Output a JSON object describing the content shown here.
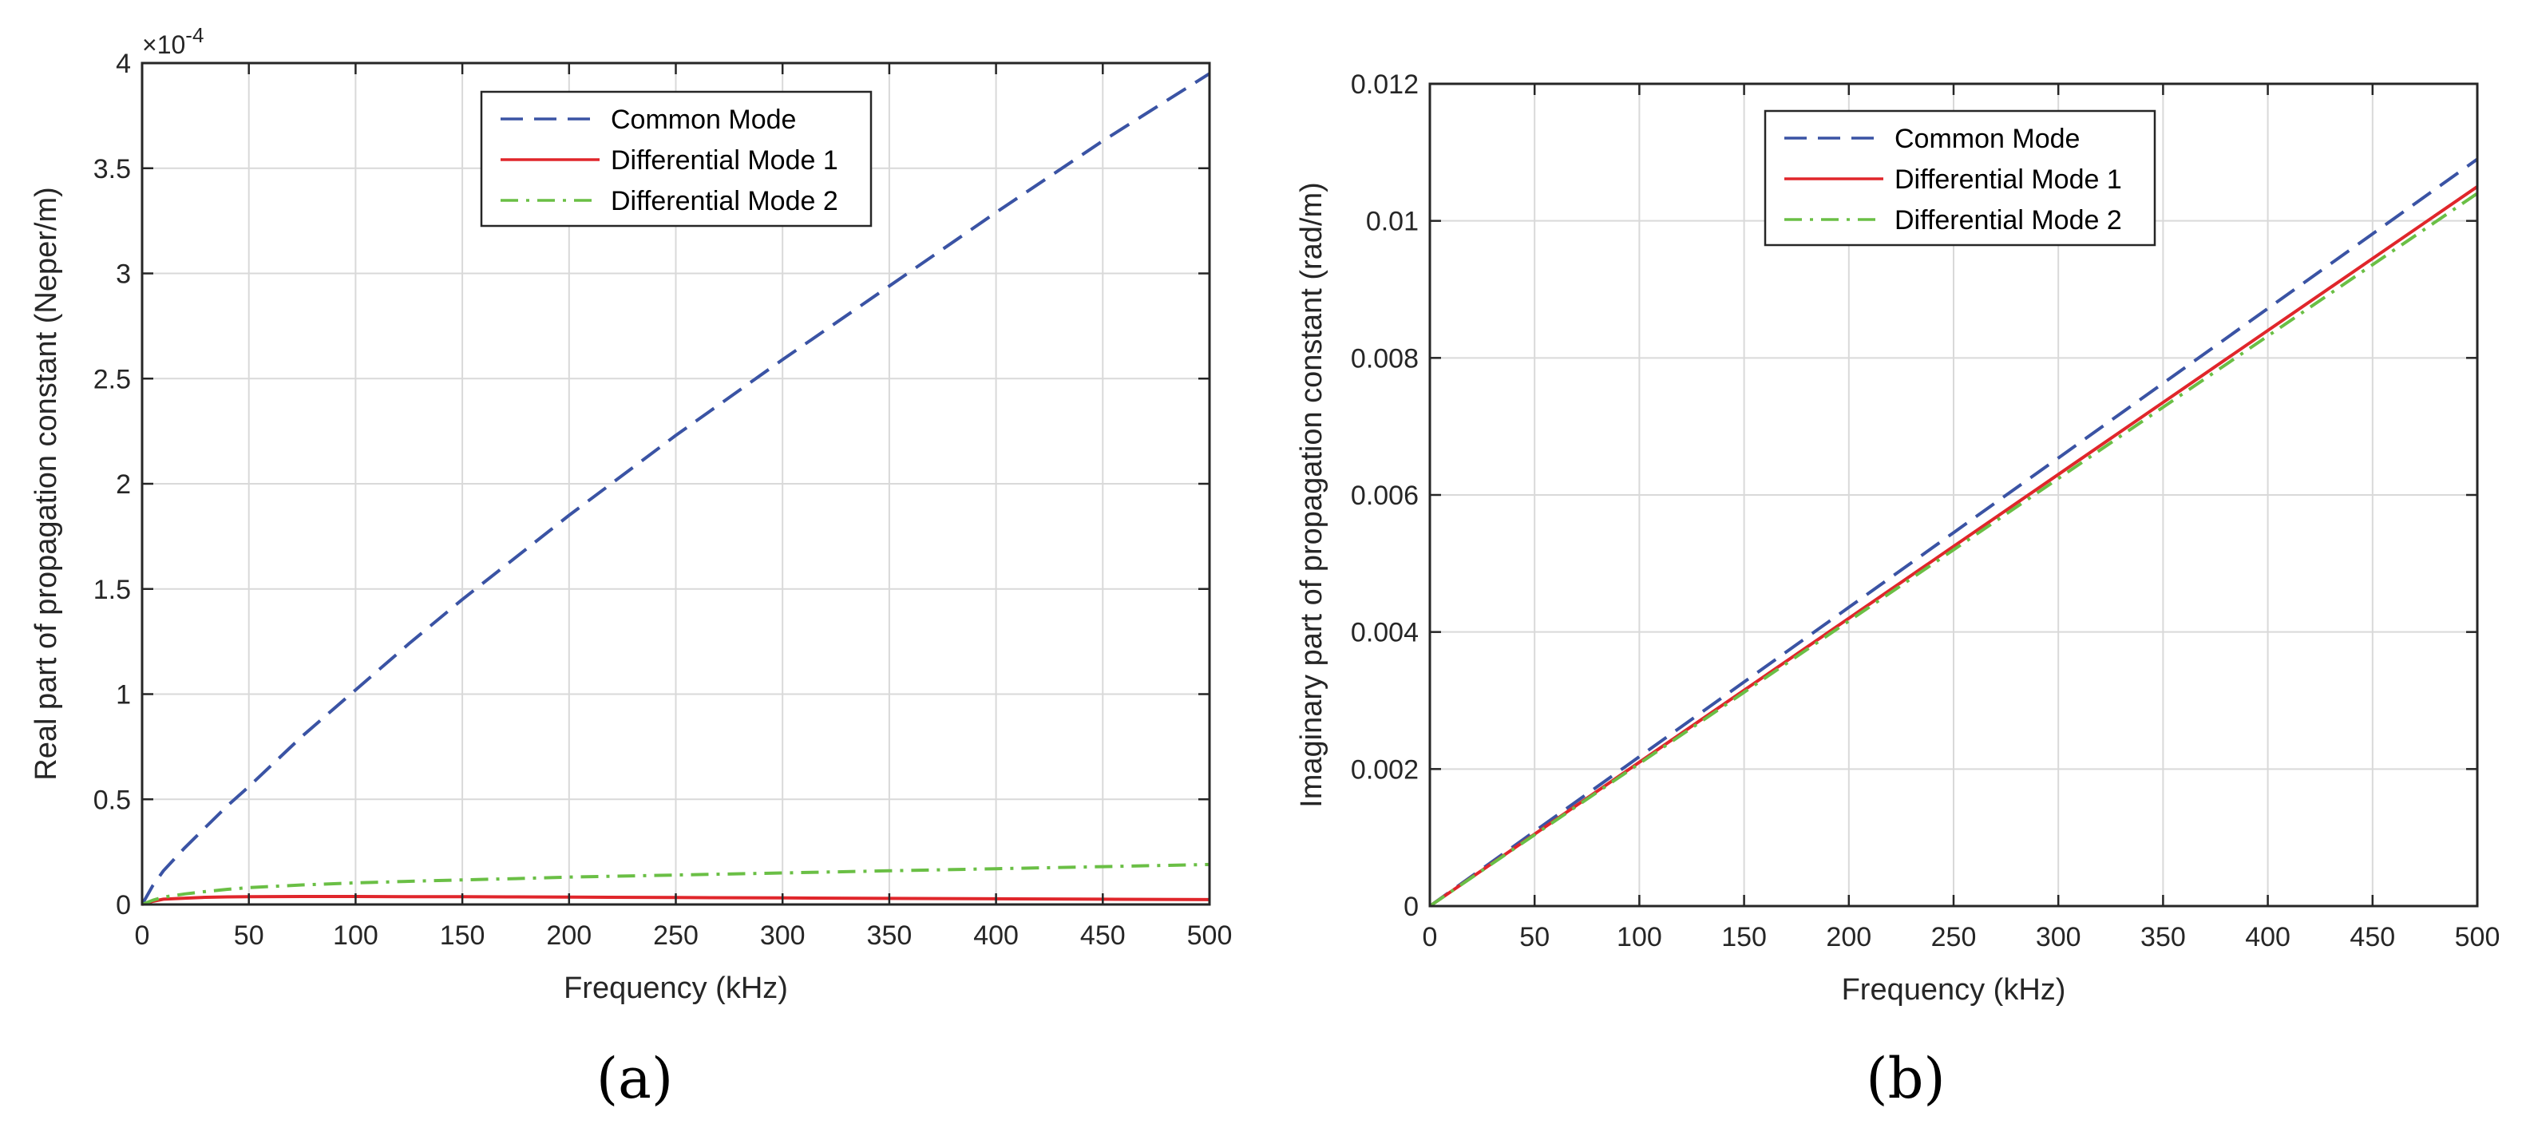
{
  "figure": {
    "colors": {
      "common_mode": "#3a53a4",
      "diff_mode_1": "#e0262b",
      "diff_mode_2": "#6abf45",
      "grid": "#d9d9d9",
      "axis": "#262626"
    }
  },
  "chart_data": [
    {
      "type": "line",
      "caption": "(a)",
      "xlabel": "Frequency (kHz)",
      "ylabel": "Real part of propagation constant (Neper/m)",
      "exponent_label": "×10",
      "exponent_power": "-4",
      "xlim": [
        0,
        500
      ],
      "ylim": [
        0,
        4
      ],
      "xticks": [
        0,
        50,
        100,
        150,
        200,
        250,
        300,
        350,
        400,
        450,
        500
      ],
      "xtick_labels": [
        "0",
        "50",
        "100",
        "150",
        "200",
        "250",
        "300",
        "350",
        "400",
        "450",
        "500"
      ],
      "yticks": [
        0,
        0.5,
        1,
        1.5,
        2,
        2.5,
        3,
        3.5,
        4
      ],
      "ytick_labels": [
        "0",
        "0.5",
        "1",
        "1.5",
        "2",
        "2.5",
        "3",
        "3.5",
        "4"
      ],
      "grid": true,
      "legend_position": "top-center",
      "x": [
        0,
        5,
        10,
        20,
        30,
        40,
        50,
        75,
        100,
        125,
        150,
        175,
        200,
        250,
        300,
        350,
        400,
        450,
        500
      ],
      "series": [
        {
          "name": "Common Mode",
          "style": "dashed",
          "color_key": "common_mode",
          "values": [
            0,
            0.09,
            0.16,
            0.27,
            0.37,
            0.47,
            0.56,
            0.8,
            1.02,
            1.24,
            1.45,
            1.65,
            1.85,
            2.23,
            2.59,
            2.94,
            3.29,
            3.63,
            3.95
          ]
        },
        {
          "name": "Differential Mode 1",
          "style": "solid",
          "color_key": "diff_mode_1",
          "values": [
            0,
            0.015,
            0.025,
            0.03,
            0.034,
            0.036,
            0.037,
            0.038,
            0.038,
            0.037,
            0.037,
            0.036,
            0.035,
            0.033,
            0.031,
            0.029,
            0.027,
            0.025,
            0.023
          ]
        },
        {
          "name": "Differential Mode 2",
          "style": "dashdot",
          "color_key": "diff_mode_2",
          "values": [
            0,
            0.02,
            0.035,
            0.05,
            0.062,
            0.072,
            0.08,
            0.093,
            0.103,
            0.11,
            0.117,
            0.123,
            0.13,
            0.14,
            0.15,
            0.16,
            0.17,
            0.18,
            0.19
          ]
        }
      ]
    },
    {
      "type": "line",
      "caption": "(b)",
      "xlabel": "Frequency (kHz)",
      "ylabel": "Imaginary part of propagation constant (rad/m)",
      "xlim": [
        0,
        500
      ],
      "ylim": [
        0,
        0.012
      ],
      "xticks": [
        0,
        50,
        100,
        150,
        200,
        250,
        300,
        350,
        400,
        450,
        500
      ],
      "xtick_labels": [
        "0",
        "50",
        "100",
        "150",
        "200",
        "250",
        "300",
        "350",
        "400",
        "450",
        "500"
      ],
      "yticks": [
        0,
        0.002,
        0.004,
        0.006,
        0.008,
        0.01,
        0.012
      ],
      "ytick_labels": [
        "0",
        "0.002",
        "0.004",
        "0.006",
        "0.008",
        "0.01",
        "0.012"
      ],
      "grid": true,
      "legend_position": "top-center",
      "x": [
        0,
        50,
        100,
        150,
        200,
        250,
        300,
        350,
        400,
        450,
        500
      ],
      "series": [
        {
          "name": "Common Mode",
          "style": "dashed",
          "color_key": "common_mode",
          "values": [
            0,
            0.00109,
            0.00218,
            0.00327,
            0.00436,
            0.00545,
            0.00654,
            0.00763,
            0.00872,
            0.00981,
            0.0109
          ]
        },
        {
          "name": "Differential Mode 1",
          "style": "solid",
          "color_key": "diff_mode_1",
          "values": [
            0,
            0.00105,
            0.0021,
            0.00315,
            0.0042,
            0.00525,
            0.0063,
            0.00735,
            0.0084,
            0.00945,
            0.0105
          ]
        },
        {
          "name": "Differential Mode 2",
          "style": "dashdot",
          "color_key": "diff_mode_2",
          "values": [
            0,
            0.00104,
            0.00208,
            0.00312,
            0.00416,
            0.0052,
            0.00624,
            0.00728,
            0.00832,
            0.00936,
            0.0104
          ]
        }
      ]
    }
  ]
}
